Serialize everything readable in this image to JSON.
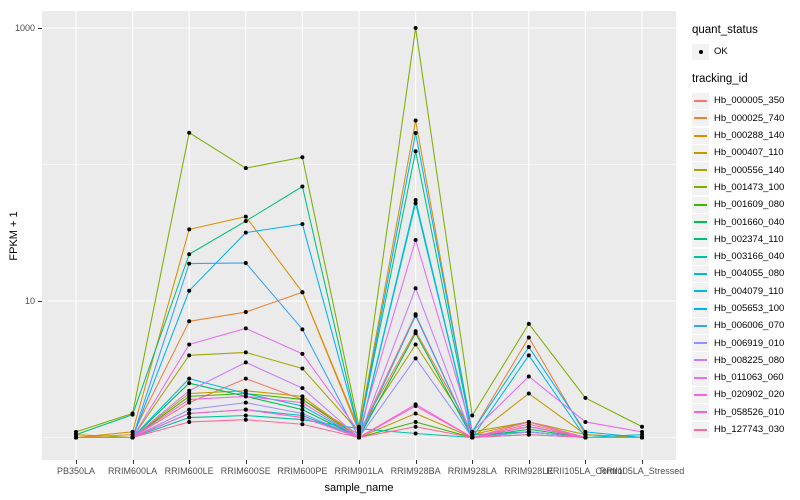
{
  "figure": {
    "y_axis_title": "FPKM + 1",
    "x_axis_title": "sample_name"
  },
  "legend": {
    "quant_status_title": "quant_status",
    "quant_status_items": [
      {
        "label": "OK"
      }
    ],
    "tracking_id_title": "tracking_id"
  },
  "chart_data": {
    "type": "line",
    "title": "",
    "xlabel": "sample_name",
    "ylabel": "FPKM + 1",
    "y_scale": "log10",
    "grid": "on",
    "legend_position": "right",
    "panel_bg": "#EBEBEB",
    "grid_color": "#FFFFFF",
    "point_color": "#000000",
    "y_ticks": [
      {
        "value": 10,
        "label": "10"
      },
      {
        "value": 1000,
        "label": "1000"
      }
    ],
    "y_minor_ticks": [
      1,
      100
    ],
    "y_range_approx": [
      0.8,
      1300
    ],
    "categories": [
      "PB350LA",
      "RRIM600LA",
      "RRIM600LE",
      "RRIM600SE",
      "RRIM600PE",
      "RRIM901LA",
      "RRIM928BA",
      "RRIM928LA",
      "RRIM928LE",
      "RRII105LA_Control",
      "RRII105LA_Stressed"
    ],
    "series": [
      {
        "name": "Hb_000005_350",
        "color": "#F8766D",
        "values": [
          1.0,
          1.0,
          1.8,
          2.7,
          1.9,
          1.05,
          8.0,
          1.0,
          1.25,
          1.0,
          1.0
        ]
      },
      {
        "name": "Hb_000025_740",
        "color": "#EA8331",
        "values": [
          1.0,
          1.05,
          7.1,
          8.3,
          11.6,
          1.1,
          6.0,
          1.1,
          5.4,
          1.05,
          1.0
        ]
      },
      {
        "name": "Hb_000288_140",
        "color": "#D89000",
        "values": [
          1.0,
          1.1,
          33.5,
          41.5,
          11.6,
          1.15,
          210,
          1.05,
          1.3,
          1.0,
          1.0
        ]
      },
      {
        "name": "Hb_000407_110",
        "color": "#C09B00",
        "values": [
          1.0,
          1.0,
          2.1,
          2.2,
          2.0,
          1.0,
          1.5,
          1.0,
          2.1,
          1.05,
          1.0
        ]
      },
      {
        "name": "Hb_000556_140",
        "color": "#A3A500",
        "values": [
          1.05,
          1.0,
          4.0,
          4.2,
          3.2,
          1.1,
          4.8,
          1.1,
          1.3,
          1.05,
          1.0
        ]
      },
      {
        "name": "Hb_001473_100",
        "color": "#7CAE00",
        "values": [
          1.1,
          1.5,
          171,
          94,
          113,
          1.2,
          1000,
          1.45,
          6.8,
          1.95,
          1.2
        ]
      },
      {
        "name": "Hb_001609_080",
        "color": "#39B600",
        "values": [
          1.0,
          1.0,
          2.0,
          2.1,
          1.9,
          1.0,
          1.3,
          1.0,
          1.1,
          1.0,
          1.0
        ]
      },
      {
        "name": "Hb_001660_040",
        "color": "#00BB4E",
        "values": [
          1.0,
          1.0,
          2.5,
          2.0,
          1.6,
          1.0,
          5.8,
          1.0,
          1.15,
          1.0,
          1.0
        ]
      },
      {
        "name": "Hb_002374_110",
        "color": "#00BF7D",
        "values": [
          1.05,
          1.47,
          22,
          38.5,
          69,
          1.1,
          125,
          1.05,
          1.1,
          1.0,
          1.0
        ]
      },
      {
        "name": "Hb_003166_040",
        "color": "#00C1A3",
        "values": [
          1.0,
          1.0,
          1.4,
          1.45,
          1.35,
          1.16,
          1.07,
          1.0,
          1.05,
          1.0,
          1.0
        ]
      },
      {
        "name": "Hb_004055_080",
        "color": "#00BFC4",
        "values": [
          1.0,
          1.0,
          1.5,
          1.6,
          1.45,
          1.0,
          52,
          1.0,
          1.1,
          1.0,
          1.05
        ]
      },
      {
        "name": "Hb_004079_110",
        "color": "#00BAE0",
        "values": [
          1.0,
          1.0,
          2.7,
          2.1,
          1.7,
          1.0,
          55,
          1.0,
          4.0,
          1.0,
          1.0
        ]
      },
      {
        "name": "Hb_005653_100",
        "color": "#00B0F6",
        "values": [
          1.0,
          1.0,
          11.9,
          31.7,
          36.6,
          1.1,
          170,
          1.1,
          4.6,
          1.1,
          1.0
        ]
      },
      {
        "name": "Hb_006006_070",
        "color": "#35A2FF",
        "values": [
          1.0,
          1.0,
          18.8,
          19.0,
          6.2,
          1.0,
          7.8,
          1.0,
          1.2,
          1.0,
          1.0
        ]
      },
      {
        "name": "Hb_006919_010",
        "color": "#9590FF",
        "values": [
          1.0,
          1.0,
          1.6,
          1.8,
          1.5,
          1.0,
          3.8,
          1.0,
          1.1,
          1.0,
          1.0
        ]
      },
      {
        "name": "Hb_008225_080",
        "color": "#C77CFF",
        "values": [
          1.0,
          1.0,
          2.2,
          3.55,
          2.3,
          1.0,
          12.4,
          1.0,
          1.2,
          1.0,
          1.0
        ]
      },
      {
        "name": "Hb_011063_060",
        "color": "#E76BF3",
        "values": [
          1.0,
          1.0,
          4.8,
          6.3,
          4.1,
          1.1,
          28,
          1.1,
          2.8,
          1.3,
          1.1
        ]
      },
      {
        "name": "Hb_020902_020",
        "color": "#FA62DB",
        "values": [
          1.0,
          1.0,
          1.9,
          2.0,
          1.8,
          1.0,
          1.75,
          1.0,
          1.3,
          1.0,
          1.0
        ]
      },
      {
        "name": "Hb_058526_010",
        "color": "#FF61CC",
        "values": [
          1.0,
          1.0,
          1.5,
          1.6,
          1.4,
          1.0,
          1.7,
          1.0,
          1.2,
          1.0,
          1.0
        ]
      },
      {
        "name": "Hb_127743_030",
        "color": "#FF6A98",
        "values": [
          1.0,
          1.0,
          1.3,
          1.35,
          1.25,
          1.0,
          1.2,
          1.0,
          1.05,
          1.0,
          1.0
        ]
      }
    ]
  }
}
